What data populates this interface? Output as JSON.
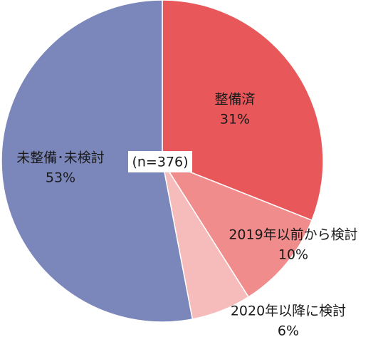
{
  "chart_data": {
    "type": "pie",
    "categories": [
      "整備済",
      "2019年以前から検討",
      "2020年以降に検討",
      "未整備･未検討"
    ],
    "values": [
      31,
      10,
      6,
      53
    ],
    "value_labels": [
      "31%",
      "10%",
      "6%",
      "53%"
    ],
    "colors": [
      "#e8585b",
      "#f08d8c",
      "#f6bcbc",
      "#7b87ba"
    ],
    "annotation": "(n=376)"
  }
}
